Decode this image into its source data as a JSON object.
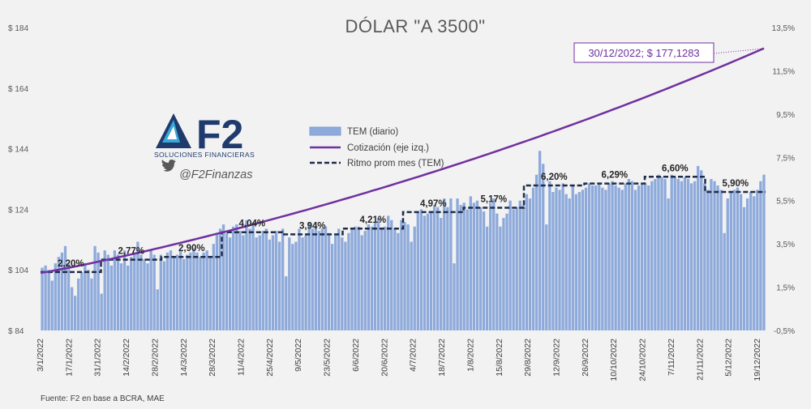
{
  "chart_data": {
    "type": "bar+line",
    "title": "DÓLAR \"A 3500\"",
    "left_axis": {
      "ticks": [
        "$ 84",
        "$ 104",
        "$ 124",
        "$ 144",
        "$ 164",
        "$ 184"
      ],
      "ylim": [
        84,
        184
      ]
    },
    "right_axis": {
      "ticks": [
        "-0,5%",
        "1,5%",
        "3,5%",
        "5,5%",
        "7,5%",
        "9,5%",
        "11,5%",
        "13,5%"
      ],
      "ylim": [
        -0.5,
        13.5
      ]
    },
    "x_ticks": [
      "3/1/2022",
      "17/1/2022",
      "31/1/2022",
      "14/2/2022",
      "28/2/2022",
      "14/3/2022",
      "28/3/2022",
      "11/4/2022",
      "25/4/2022",
      "9/5/2022",
      "23/5/2022",
      "6/6/2022",
      "20/6/2022",
      "4/7/2022",
      "18/7/2022",
      "1/8/2022",
      "15/8/2022",
      "29/8/2022",
      "12/9/2022",
      "26/9/2022",
      "10/10/2022",
      "24/10/2022",
      "7/11/2022",
      "21/11/2022",
      "5/12/2022",
      "19/12/2022"
    ],
    "legend": [
      "TEM (diario)",
      "Cotización (eje izq.)",
      "Ritmo prom mes (TEM)"
    ],
    "monthly_tem": [
      {
        "label": "2,20%",
        "value": 2.2
      },
      {
        "label": "2,77%",
        "value": 2.77
      },
      {
        "label": "2,90%",
        "value": 2.9
      },
      {
        "label": "4,04%",
        "value": 4.04
      },
      {
        "label": "3,94%",
        "value": 3.94
      },
      {
        "label": "4,21%",
        "value": 4.21
      },
      {
        "label": "4,97%",
        "value": 4.97
      },
      {
        "label": "5,17%",
        "value": 5.17
      },
      {
        "label": "6,20%",
        "value": 6.2
      },
      {
        "label": "6,29%",
        "value": 6.29
      },
      {
        "label": "6,60%",
        "value": 6.6
      },
      {
        "label": "5,90%",
        "value": 5.9
      }
    ],
    "cotizacion": {
      "start": 103.0,
      "end": 177.1283
    },
    "callout": "30/12/2022; $ 177,1283",
    "daily_tem": [
      2.4,
      2.5,
      2.3,
      1.8,
      2.6,
      2.9,
      3.1,
      3.4,
      2.6,
      1.5,
      1.1,
      1.9,
      2.2,
      2.6,
      2.3,
      1.9,
      3.4,
      3.1,
      2.9,
      3.2,
      3.0,
      2.5,
      3.2,
      3.0,
      2.6,
      3.2,
      2.5,
      2.9,
      3.1,
      3.6,
      3.0,
      2.8,
      2.6,
      3.2,
      3.0,
      1.4,
      3.0,
      2.7,
      3.1,
      3.2,
      2.9,
      3.0,
      3.2,
      2.8,
      3.0,
      3.1,
      3.3,
      3.1,
      2.9,
      3.1,
      3.2,
      2.9,
      3.5,
      4.0,
      4.2,
      4.4,
      4.0,
      3.8,
      4.3,
      4.4,
      4.1,
      3.9,
      4.6,
      4.2,
      4.5,
      3.8,
      3.9,
      4.1,
      4.2,
      3.7,
      3.9,
      4.1,
      3.6,
      4.2,
      4.0,
      3.8,
      3.5,
      3.6,
      4.2,
      3.8,
      3.9,
      4.5,
      4.2,
      4.3,
      4.1,
      4.2,
      4.3,
      4.0,
      3.5,
      3.9,
      4.2,
      3.8,
      3.6,
      4.0,
      4.2,
      4.3,
      4.3,
      3.9,
      4.1,
      4.4,
      4.3,
      4.5,
      4.7,
      4.2,
      4.3,
      4.8,
      4.6,
      4.2,
      4.0,
      4.6,
      4.5,
      4.4,
      3.6,
      4.3,
      5.0,
      5.1,
      4.8,
      4.9,
      5.0,
      5.3,
      5.2,
      4.7,
      5.6,
      5.2,
      5.6,
      2.1,
      5.6,
      5.3,
      5.4,
      5.1,
      5.7,
      5.4,
      5.5,
      5.2,
      5.0,
      4.3,
      5.4,
      5.6,
      4.9,
      4.3,
      4.7,
      4.9,
      5.5,
      5.1,
      5.2,
      5.5,
      5.3,
      5.8,
      5.6,
      6.1,
      6.7,
      7.8,
      7.2,
      4.4,
      6.4,
      5.9,
      6.1,
      6.0,
      6.3,
      5.8,
      5.6,
      6.2,
      5.8,
      5.9,
      6.0,
      6.1,
      6.3,
      6.2,
      6.2,
      6.3,
      6.1,
      6.0,
      6.3,
      6.4,
      6.2,
      6.1,
      6.0,
      6.3,
      6.5,
      6.4,
      6.0,
      6.2,
      6.3,
      6.3,
      6.2,
      6.4,
      6.5,
      6.7,
      6.6,
      6.5,
      6.4,
      6.7,
      6.6,
      6.5,
      6.4,
      6.6,
      6.5,
      6.3,
      6.4,
      7.1,
      6.9,
      6.3,
      6.0,
      6.5,
      6.4,
      6.2,
      6.0,
      5.8,
      5.6,
      5.9,
      6.0,
      6.1,
      5.8,
      5.2,
      5.6,
      5.9,
      5.7,
      6.0,
      6.4,
      6.7
    ],
    "daily_marks": [
      {
        "i": 18,
        "v": 1.2
      },
      {
        "i": 74,
        "v": 2.0
      },
      {
        "i": 125,
        "v": 2.6
      },
      {
        "i": 190,
        "v": 5.6
      },
      {
        "i": 207,
        "v": 4.0
      }
    ]
  },
  "logo": {
    "brand": "F2",
    "subtitle": "SOLUCIONES FINANCIERAS",
    "handle": "@F2Finanzas",
    "icon": "twitter-bird-icon"
  },
  "source": "Fuente: F2 en base a BCRA, MAE",
  "colors": {
    "bar": "#8eaadb",
    "bar_edge": "#7f9fd4",
    "line": "#7030a0",
    "avg": "#1f2d4d",
    "brand": "#1f3b6e",
    "background": "#f2f2f2"
  }
}
